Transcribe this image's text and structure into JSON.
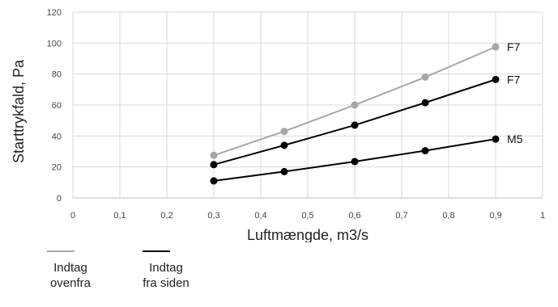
{
  "chart_data": {
    "type": "line",
    "title": "",
    "xlabel": "Luftmængde, m3/s",
    "ylabel": "Starttrykfald, Pa",
    "xlim": [
      0,
      1
    ],
    "ylim": [
      0,
      120
    ],
    "x_ticks": [
      "0",
      "0,1",
      "0,2",
      "0,3",
      "0,4",
      "0,5",
      "0,6",
      "0,7",
      "0,8",
      "0,9",
      "1"
    ],
    "y_ticks": [
      "0",
      "20",
      "40",
      "60",
      "80",
      "100",
      "120"
    ],
    "grid": true,
    "legend_position": "bottom-left",
    "x": [
      0.3,
      0.45,
      0.6,
      0.75,
      0.9
    ],
    "series": [
      {
        "name": "Indtag ovenfra",
        "label": "F7",
        "color": "#a6a6a6",
        "values": [
          27.5,
          43,
          60,
          78,
          97.5
        ]
      },
      {
        "name": "Indtag fra siden",
        "label": "F7",
        "color": "#000000",
        "values": [
          21.5,
          34,
          47,
          61.5,
          76.5
        ]
      },
      {
        "name": "Indtag fra siden",
        "label": "M5",
        "color": "#000000",
        "values": [
          11,
          17,
          23.5,
          30.5,
          38
        ]
      }
    ]
  },
  "legend": [
    {
      "line1": "Indtag",
      "line2": "ovenfra",
      "color": "#a6a6a6"
    },
    {
      "line1": "Indtag",
      "line2": "fra siden",
      "color": "#000000"
    }
  ]
}
